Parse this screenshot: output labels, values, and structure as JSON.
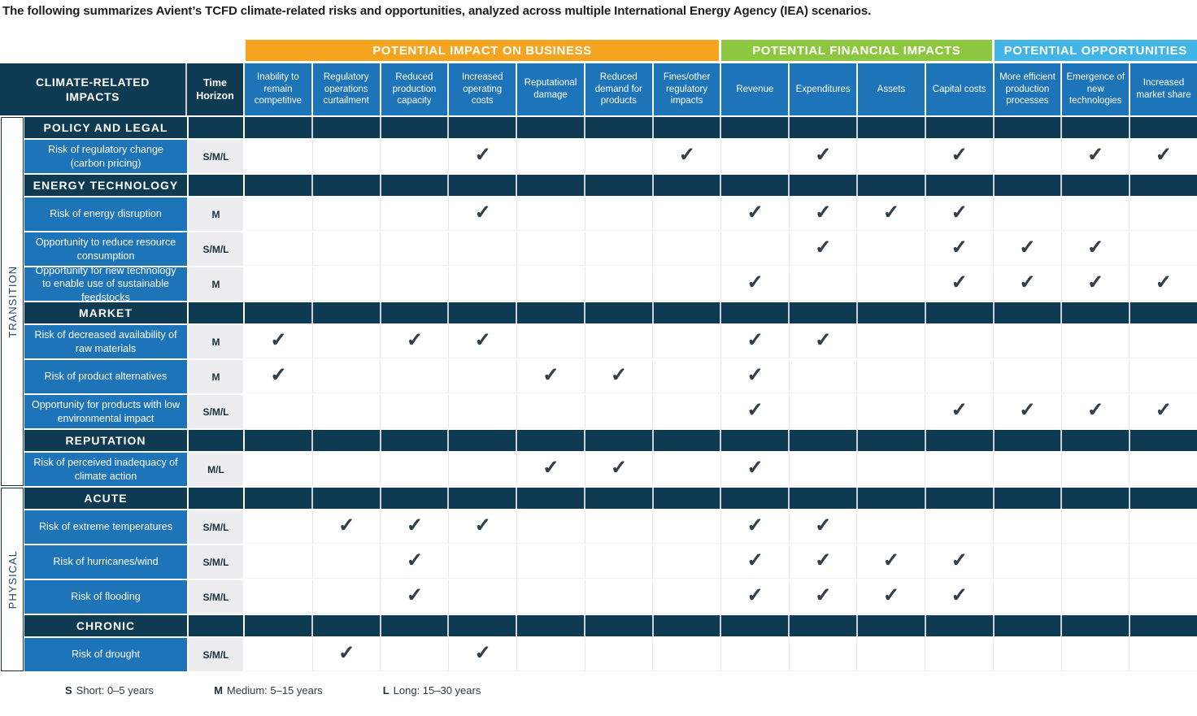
{
  "title": "The following summarizes Avient’s TCFD climate-related risks and opportunities, analyzed across multiple International Energy Agency (IEA) scenarios.",
  "corner": {
    "impacts_label": "CLIMATE-RELATED IMPACTS",
    "time_label": "Time Horizon"
  },
  "groups": [
    {
      "label": "POTENTIAL IMPACT ON BUSINESS",
      "color": "#F5A41F",
      "col_span": 7
    },
    {
      "label": "POTENTIAL FINANCIAL IMPACTS",
      "color": "#8DC63F",
      "col_span": 4
    },
    {
      "label": "POTENTIAL OPPORTUNITIES",
      "color": "#41B6E6",
      "col_span": 3
    }
  ],
  "columns": [
    "Inability to remain competitive",
    "Regulatory operations curtailment",
    "Reduced production capacity",
    "Increased operating costs",
    "Reputational damage",
    "Reduced demand for products",
    "Fines/other regulatory impacts",
    "Revenue",
    "Expenditures",
    "Assets",
    "Capital costs",
    "More efficient production processes",
    "Emergence of new technologies",
    "Increased market share"
  ],
  "phases": [
    {
      "label": "TRANSITION",
      "sections": [
        {
          "label": "POLICY AND LEGAL",
          "rows": [
            {
              "label": "Risk of regulatory change (carbon pricing)",
              "time": "S/M/L",
              "checks": [
                4,
                7,
                9,
                11,
                13,
                14
              ]
            }
          ]
        },
        {
          "label": "ENERGY TECHNOLOGY",
          "rows": [
            {
              "label": "Risk of energy disruption",
              "time": "M",
              "checks": [
                4,
                8,
                9,
                10,
                11
              ]
            },
            {
              "label": "Opportunity to reduce resource consumption",
              "time": "S/M/L",
              "checks": [
                9,
                11,
                12,
                13
              ]
            },
            {
              "label": "Opportunity for new technology to enable use of sustainable feedstocks",
              "time": "M",
              "checks": [
                8,
                11,
                12,
                13,
                14
              ]
            }
          ]
        },
        {
          "label": "MARKET",
          "rows": [
            {
              "label": "Risk of decreased availability of raw materials",
              "time": "M",
              "checks": [
                1,
                3,
                4,
                8,
                9
              ]
            },
            {
              "label": "Risk of product alternatives",
              "time": "M",
              "checks": [
                1,
                5,
                6,
                8
              ]
            },
            {
              "label": "Opportunity for products with low environmental impact",
              "time": "S/M/L",
              "checks": [
                8,
                11,
                12,
                13,
                14
              ]
            }
          ]
        },
        {
          "label": "REPUTATION",
          "rows": [
            {
              "label": "Risk of perceived inadequacy of climate action",
              "time": "M/L",
              "checks": [
                5,
                6,
                8
              ]
            }
          ]
        }
      ]
    },
    {
      "label": "PHYSICAL",
      "sections": [
        {
          "label": "ACUTE",
          "rows": [
            {
              "label": "Risk of extreme temperatures",
              "time": "S/M/L",
              "checks": [
                2,
                3,
                4,
                8,
                9
              ]
            },
            {
              "label": "Risk of hurricanes/wind",
              "time": "S/M/L",
              "checks": [
                3,
                8,
                9,
                10,
                11
              ]
            },
            {
              "label": "Risk of flooding",
              "time": "S/M/L",
              "checks": [
                3,
                8,
                9,
                10,
                11
              ]
            }
          ]
        },
        {
          "label": "CHRONIC",
          "rows": [
            {
              "label": "Risk of drought",
              "time": "S/M/L",
              "checks": [
                2,
                4
              ]
            }
          ]
        }
      ]
    }
  ],
  "check_glyph": "✓",
  "colors": {
    "header_navy": "#0E3A52",
    "cell_blue": "#1E74B9",
    "time_gray": "#EDEDEF",
    "check_color": "#31404B"
  },
  "legend": [
    {
      "key": "S",
      "text": "Short: 0–5 years"
    },
    {
      "key": "M",
      "text": "Medium: 5–15 years"
    },
    {
      "key": "L",
      "text": "Long: 15–30 years"
    }
  ]
}
